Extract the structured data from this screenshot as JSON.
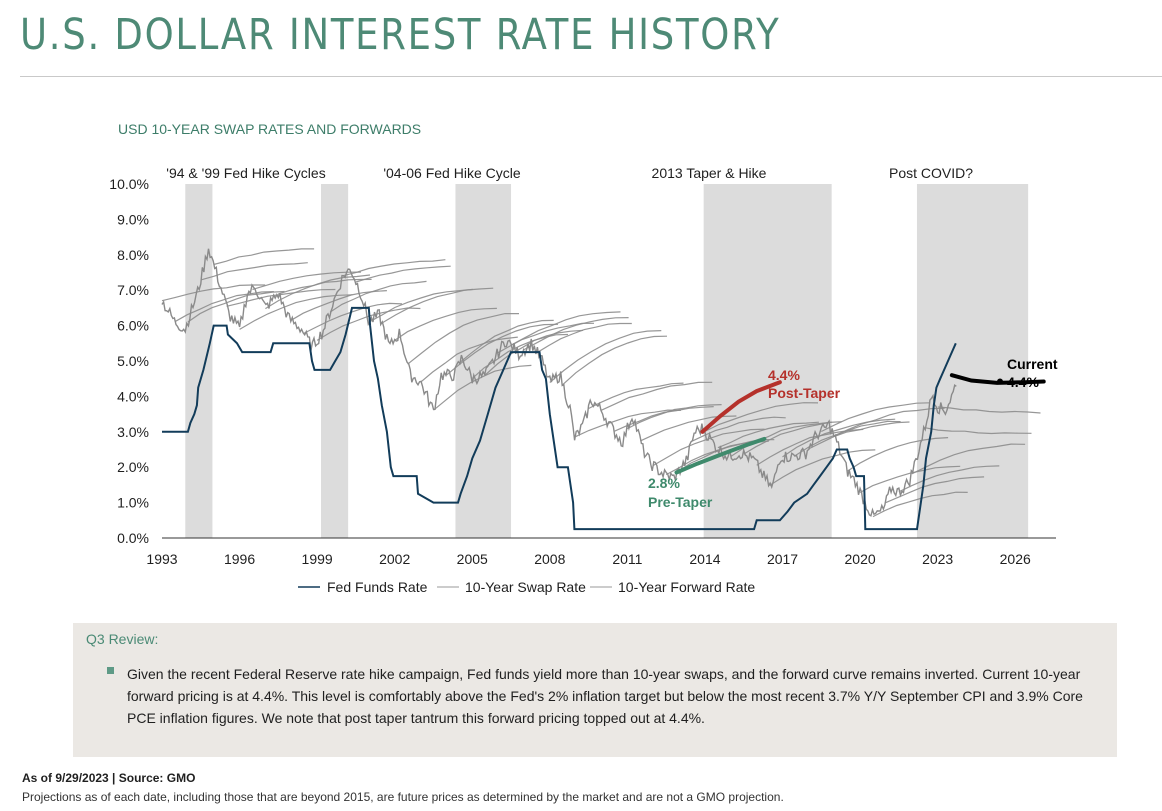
{
  "header": {
    "title": "U.S. DOLLAR INTEREST RATE HISTORY",
    "subtitle": "USD 10-YEAR SWAP RATES AND FORWARDS"
  },
  "chart_data": {
    "type": "line",
    "title": "USD 10-YEAR SWAP RATES AND FORWARDS",
    "xlim": [
      1993,
      2027.5
    ],
    "ylim": [
      0,
      10
    ],
    "x_ticks": [
      "1993",
      "1996",
      "1999",
      "2002",
      "2005",
      "2008",
      "2011",
      "2014",
      "2017",
      "2020",
      "2023",
      "2026"
    ],
    "y_ticks": [
      "0.0%",
      "1.0%",
      "2.0%",
      "3.0%",
      "4.0%",
      "5.0%",
      "6.0%",
      "7.0%",
      "8.0%",
      "9.0%",
      "10.0%"
    ],
    "grid": false,
    "legend_position": "bottom",
    "colors": {
      "fed": "#123c5a",
      "swap": "#8c8c8c",
      "forward": "#8c8c8c",
      "shade": "#dcdcdc",
      "post_taper": "#b5312b",
      "pre_taper": "#3f8a6c",
      "current": "#000000"
    },
    "shaded_periods": [
      {
        "label": "'94 & '99 Fed Hike Cycles",
        "start": 1993.9,
        "end": 1994.95
      },
      {
        "label": "",
        "start": 1999.15,
        "end": 2000.2
      },
      {
        "label": "'04-06 Fed Hike Cycle",
        "start": 2004.35,
        "end": 2006.5
      },
      {
        "label": "2013 Taper & Hike",
        "start": 2013.95,
        "end": 2018.9
      },
      {
        "label": "Post COVID?",
        "start": 2022.2,
        "end": 2026.5
      }
    ],
    "series": [
      {
        "name": "Fed Funds Rate",
        "points": [
          [
            1993,
            3.0
          ],
          [
            1994.0,
            3.0
          ],
          [
            1994.1,
            3.25
          ],
          [
            1994.25,
            3.5
          ],
          [
            1994.35,
            3.75
          ],
          [
            1994.4,
            4.25
          ],
          [
            1994.6,
            4.75
          ],
          [
            1994.85,
            5.5
          ],
          [
            1995.0,
            6.0
          ],
          [
            1995.5,
            6.0
          ],
          [
            1995.55,
            5.75
          ],
          [
            1995.9,
            5.5
          ],
          [
            1996.1,
            5.25
          ],
          [
            1997.2,
            5.25
          ],
          [
            1997.3,
            5.5
          ],
          [
            1998.7,
            5.5
          ],
          [
            1998.8,
            5.0
          ],
          [
            1998.9,
            4.75
          ],
          [
            1999.5,
            4.75
          ],
          [
            1999.7,
            5.0
          ],
          [
            1999.9,
            5.25
          ],
          [
            2000.1,
            5.75
          ],
          [
            2000.35,
            6.5
          ],
          [
            2001.0,
            6.5
          ],
          [
            2001.05,
            6.0
          ],
          [
            2001.2,
            5.0
          ],
          [
            2001.35,
            4.5
          ],
          [
            2001.5,
            3.75
          ],
          [
            2001.7,
            3.0
          ],
          [
            2001.85,
            2.0
          ],
          [
            2001.95,
            1.75
          ],
          [
            2002.85,
            1.75
          ],
          [
            2002.9,
            1.25
          ],
          [
            2003.5,
            1.0
          ],
          [
            2004.45,
            1.0
          ],
          [
            2004.55,
            1.25
          ],
          [
            2004.8,
            1.75
          ],
          [
            2005.0,
            2.25
          ],
          [
            2005.3,
            2.75
          ],
          [
            2005.6,
            3.5
          ],
          [
            2005.9,
            4.25
          ],
          [
            2006.2,
            4.75
          ],
          [
            2006.5,
            5.25
          ],
          [
            2007.6,
            5.25
          ],
          [
            2007.7,
            4.75
          ],
          [
            2007.85,
            4.5
          ],
          [
            2008.0,
            3.5
          ],
          [
            2008.1,
            3.0
          ],
          [
            2008.3,
            2.0
          ],
          [
            2008.7,
            2.0
          ],
          [
            2008.8,
            1.5
          ],
          [
            2008.9,
            1.0
          ],
          [
            2008.95,
            0.25
          ],
          [
            2015.9,
            0.25
          ],
          [
            2016.0,
            0.5
          ],
          [
            2016.9,
            0.5
          ],
          [
            2017.2,
            0.75
          ],
          [
            2017.45,
            1.0
          ],
          [
            2017.95,
            1.25
          ],
          [
            2018.2,
            1.5
          ],
          [
            2018.45,
            1.75
          ],
          [
            2018.7,
            2.0
          ],
          [
            2018.95,
            2.25
          ],
          [
            2019.1,
            2.5
          ],
          [
            2019.5,
            2.5
          ],
          [
            2019.6,
            2.25
          ],
          [
            2019.75,
            2.0
          ],
          [
            2019.85,
            1.75
          ],
          [
            2020.15,
            1.75
          ],
          [
            2020.2,
            0.25
          ],
          [
            2022.2,
            0.25
          ],
          [
            2022.3,
            0.75
          ],
          [
            2022.45,
            1.5
          ],
          [
            2022.55,
            2.25
          ],
          [
            2022.75,
            3.0
          ],
          [
            2022.85,
            3.75
          ],
          [
            2022.95,
            4.25
          ],
          [
            2023.1,
            4.5
          ],
          [
            2023.25,
            4.75
          ],
          [
            2023.4,
            5.0
          ],
          [
            2023.55,
            5.25
          ],
          [
            2023.7,
            5.5
          ]
        ]
      },
      {
        "name": "10-Year Swap Rate"
      },
      {
        "name": "10-Year Forward Rate"
      }
    ],
    "annotations": [
      {
        "value": "4.4%",
        "label": "Post-Taper",
        "x": 2015.8,
        "y": 4.45,
        "color": "post_taper"
      },
      {
        "value": "2.8%",
        "label": "Pre-Taper",
        "x": 2013.55,
        "y": 1.55,
        "color": "pre_taper"
      },
      {
        "value": "4.4%",
        "label": "Current",
        "x": 2027.2,
        "y": 4.4,
        "color": "current"
      }
    ],
    "highlight_lines": [
      {
        "name": "Post-Taper forward",
        "color": "post_taper",
        "points": [
          [
            2013.9,
            3.0
          ],
          [
            2014.6,
            3.45
          ],
          [
            2015.3,
            3.85
          ],
          [
            2016.0,
            4.15
          ],
          [
            2016.9,
            4.4
          ]
        ]
      },
      {
        "name": "Pre-Taper forward",
        "color": "pre_taper",
        "points": [
          [
            2012.9,
            1.85
          ],
          [
            2013.7,
            2.1
          ],
          [
            2014.6,
            2.35
          ],
          [
            2015.5,
            2.6
          ],
          [
            2016.3,
            2.8
          ]
        ]
      },
      {
        "name": "Current forward",
        "color": "current",
        "points": [
          [
            2023.55,
            4.6
          ],
          [
            2024.3,
            4.45
          ],
          [
            2025.3,
            4.38
          ],
          [
            2026.4,
            4.4
          ],
          [
            2027.1,
            4.42
          ]
        ]
      }
    ]
  },
  "legend": {
    "fed": "Fed Funds Rate",
    "swap": "10-Year Swap Rate",
    "forward": "10-Year Forward Rate"
  },
  "review": {
    "heading": "Q3 Review:",
    "text": "Given the recent Federal Reserve rate hike campaign, Fed funds yield more than 10-year swaps, and the forward curve remains inverted. Current 10-year forward pricing is at 4.4%. This level is comfortably above the Fed's 2% inflation target but below the most recent 3.7% Y/Y September CPI and 3.9% Core PCE inflation figures. We note that post taper tantrum this forward pricing topped out at 4.4%."
  },
  "footer": {
    "as_of": "As of 9/29/2023 | Source: GMO",
    "note": "Projections as of each date, including those that are beyond 2015, are future prices as determined by the market and are not a GMO projection."
  }
}
